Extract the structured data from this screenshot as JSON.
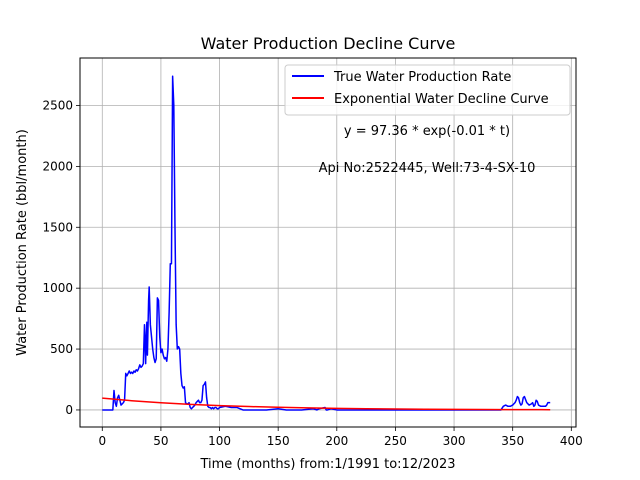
{
  "chart_data": {
    "type": "line",
    "title": "Water Production Decline Curve",
    "xlabel": "Time (months) from:1/1991 to:12/2023",
    "ylabel": "Water Production Rate (bbl/month)",
    "xlim": [
      -19,
      404
    ],
    "ylim": [
      -140,
      2890
    ],
    "xticks": [
      0,
      50,
      100,
      150,
      200,
      250,
      300,
      350,
      400
    ],
    "yticks": [
      0,
      500,
      1000,
      1500,
      2000,
      2500
    ],
    "grid": true,
    "legend_position": "top-right",
    "annotations": [
      "y = 97.36 * exp(-0.01 * t)",
      "Api No:2522445, Well:73-4-SX-10"
    ],
    "series": [
      {
        "name": "True Water Production Rate",
        "color": "#0000ff",
        "x": [
          0,
          9,
          10,
          11,
          12,
          13,
          14,
          15,
          16,
          17,
          18,
          19,
          20,
          21,
          22,
          23,
          24,
          25,
          26,
          27,
          28,
          29,
          30,
          31,
          32,
          33,
          34,
          35,
          36,
          37,
          37.5,
          38,
          38.5,
          39,
          39.5,
          40,
          41,
          42,
          43,
          44,
          45,
          46,
          47,
          48,
          49,
          50,
          51,
          52,
          53,
          54,
          55,
          56,
          57,
          58,
          59,
          60,
          61,
          62,
          63,
          64,
          65,
          66,
          67,
          68,
          69,
          70,
          71,
          72,
          73,
          74,
          75,
          76,
          77,
          78,
          79,
          80,
          81,
          82,
          83,
          84,
          85,
          86,
          87,
          88,
          89,
          90,
          91,
          92,
          93,
          94,
          95,
          96,
          97,
          98,
          99,
          100,
          105,
          110,
          115,
          120,
          124,
          125,
          130,
          140,
          150,
          157,
          160,
          170,
          180,
          183,
          185,
          190,
          191,
          192,
          195,
          200,
          220,
          240,
          260,
          268,
          280,
          300,
          320,
          340,
          342,
          344,
          346,
          348,
          350,
          352,
          353,
          354,
          355,
          356,
          357,
          358,
          359,
          360,
          362,
          364,
          366,
          367,
          368,
          369,
          370,
          371,
          372,
          374,
          376,
          378,
          379,
          380,
          381,
          382
        ],
        "y": [
          0,
          0,
          160,
          60,
          30,
          100,
          120,
          80,
          40,
          50,
          60,
          80,
          300,
          280,
          300,
          320,
          300,
          310,
          300,
          320,
          310,
          330,
          320,
          340,
          370,
          350,
          360,
          380,
          700,
          380,
          600,
          720,
          450,
          680,
          900,
          1010,
          700,
          600,
          500,
          430,
          390,
          420,
          920,
          900,
          600,
          470,
          500,
          450,
          420,
          430,
          400,
          500,
          800,
          1200,
          1200,
          2740,
          2500,
          1500,
          700,
          500,
          520,
          500,
          300,
          200,
          180,
          190,
          60,
          50,
          50,
          60,
          20,
          10,
          20,
          30,
          40,
          60,
          70,
          80,
          60,
          60,
          80,
          200,
          210,
          230,
          100,
          30,
          20,
          20,
          10,
          20,
          10,
          20,
          20,
          10,
          10,
          20,
          30,
          20,
          20,
          0,
          0,
          0,
          0,
          0,
          10,
          0,
          0,
          0,
          10,
          0,
          10,
          20,
          0,
          0,
          10,
          0,
          0,
          0,
          0,
          0,
          0,
          0,
          0,
          0,
          30,
          40,
          30,
          30,
          40,
          60,
          80,
          110,
          100,
          60,
          40,
          50,
          100,
          110,
          60,
          40,
          50,
          60,
          30,
          40,
          80,
          70,
          40,
          30,
          30,
          30,
          40,
          60,
          60,
          60
        ]
      },
      {
        "name": "Exponential Water Decline Curve",
        "color": "#ff0000",
        "x": [
          0,
          25,
          50,
          75,
          100,
          125,
          150,
          175,
          200,
          225,
          250,
          275,
          300,
          325,
          350,
          375,
          382
        ],
        "y": [
          97.36,
          75.8,
          59.0,
          46.0,
          35.8,
          27.9,
          21.7,
          16.9,
          13.2,
          10.3,
          8.0,
          6.2,
          4.8,
          3.8,
          2.9,
          2.3,
          2.1
        ]
      }
    ]
  }
}
